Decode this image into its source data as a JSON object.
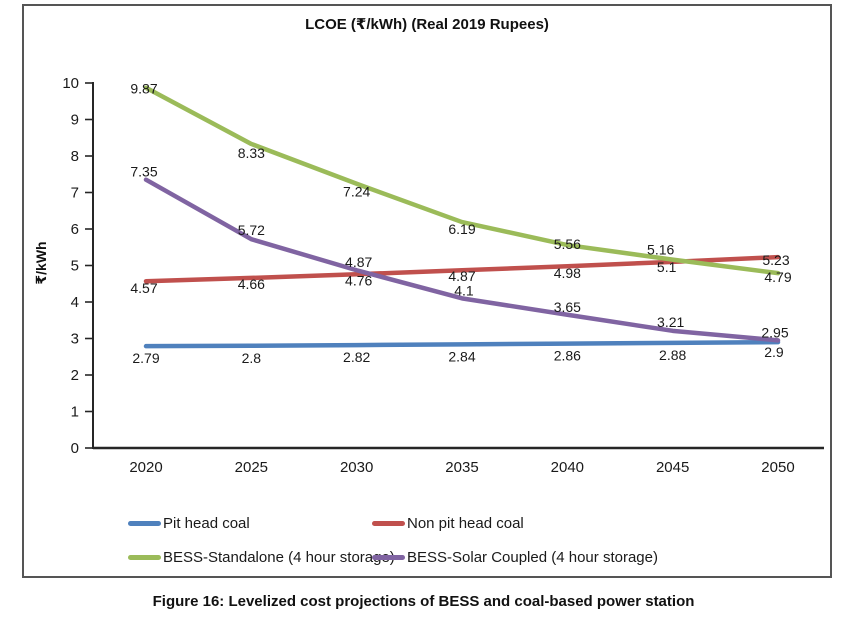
{
  "figure": {
    "caption": "Figure 16: Levelized cost projections of BESS and coal-based power station"
  },
  "colors": {
    "axis": "#262626",
    "text": "#1a1a1a",
    "border": "#555555"
  },
  "chart_data": {
    "type": "line",
    "title": "LCOE (₹/kWh) (Real 2019 Rupees)",
    "xlabel": "",
    "ylabel": "₹/kWh",
    "categories": [
      "2020",
      "2025",
      "2030",
      "2035",
      "2040",
      "2045",
      "2050"
    ],
    "yticks": [
      0,
      1,
      2,
      3,
      4,
      5,
      6,
      7,
      8,
      9,
      10
    ],
    "ylim": [
      0,
      10
    ],
    "grid": false,
    "legend_position": "bottom",
    "data_labels": true,
    "series": [
      {
        "name": "Pit head coal",
        "color": "#4F81BD",
        "values": [
          2.79,
          2.8,
          2.82,
          2.84,
          2.86,
          2.88,
          2.9
        ]
      },
      {
        "name": "Non pit head coal",
        "color": "#C0504D",
        "values": [
          4.57,
          4.66,
          4.76,
          4.87,
          4.98,
          5.1,
          5.23
        ]
      },
      {
        "name": "BESS-Standalone (4 hour storage)",
        "color": "#9BBB59",
        "values": [
          9.87,
          8.33,
          7.24,
          6.19,
          5.56,
          5.16,
          4.79
        ]
      },
      {
        "name": "BESS-Solar Coupled (4 hour storage)",
        "color": "#8064A2",
        "values": [
          7.35,
          5.72,
          4.87,
          4.1,
          3.65,
          3.21,
          2.95
        ]
      }
    ]
  }
}
